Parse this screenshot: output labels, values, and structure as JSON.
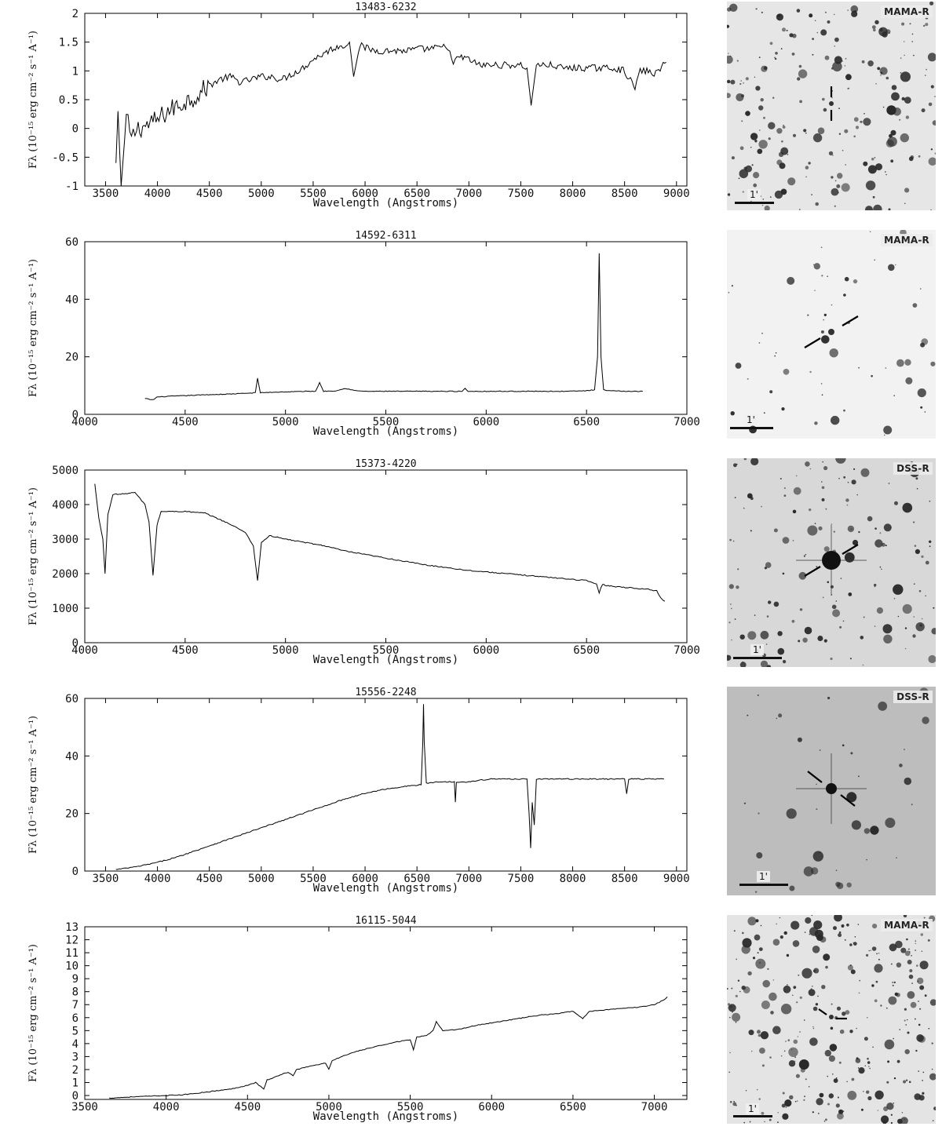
{
  "common": {
    "xlabel": "Wavelength (Angstroms)",
    "ylabel": "F_λ (10^-15 erg cm^-2 s^-1 A^-1)",
    "scale_label": "1'"
  },
  "chart_data": [
    {
      "type": "line",
      "title": "13483-6232",
      "xlabel": "Wavelength (Angstroms)",
      "ylabel": "Fλ (10⁻¹⁵ erg cm⁻² s⁻¹ A⁻¹)",
      "xlim": [
        3300,
        9100
      ],
      "ylim": [
        -1,
        2
      ],
      "xticks": [
        3500,
        4000,
        4500,
        5000,
        5500,
        6000,
        6500,
        7000,
        7500,
        8000,
        8500,
        9000
      ],
      "yticks": [
        -1,
        -0.5,
        0,
        0.5,
        1,
        1.5,
        2
      ],
      "series": [
        {
          "x": [
            3600,
            3620,
            3650,
            3700,
            3750,
            3800,
            3900,
            4000,
            4100,
            4200,
            4300,
            4400,
            4500,
            4600,
            4700,
            4800,
            4900,
            5000,
            5100,
            5200,
            5300,
            5400,
            5500,
            5600,
            5700,
            5800,
            5850,
            5890,
            5950,
            6000,
            6100,
            6200,
            6300,
            6400,
            6500,
            6600,
            6700,
            6800,
            6850,
            6900,
            7000,
            7100,
            7200,
            7300,
            7400,
            7500,
            7560,
            7600,
            7650,
            7700,
            7800,
            7900,
            8000,
            8100,
            8200,
            8300,
            8400,
            8500,
            8600,
            8650,
            8700,
            8800,
            8900
          ],
          "y": [
            -0.6,
            0.3,
            -1.0,
            0.2,
            -0.2,
            0.0,
            0.05,
            0.15,
            0.3,
            0.4,
            0.5,
            0.6,
            0.75,
            0.85,
            0.9,
            0.8,
            0.85,
            0.9,
            0.9,
            0.85,
            0.95,
            1.05,
            1.2,
            1.3,
            1.4,
            1.45,
            1.5,
            0.9,
            1.45,
            1.4,
            1.35,
            1.35,
            1.35,
            1.35,
            1.38,
            1.38,
            1.4,
            1.42,
            1.1,
            1.25,
            1.2,
            1.1,
            1.1,
            1.1,
            1.1,
            1.1,
            1.05,
            0.4,
            1.1,
            1.1,
            1.1,
            1.05,
            1.05,
            1.05,
            1.05,
            1.05,
            1.05,
            1.0,
            0.7,
            1.0,
            1.0,
            0.95,
            1.15
          ]
        }
      ]
    },
    {
      "type": "line",
      "title": "14592-6311",
      "xlabel": "Wavelength (Angstroms)",
      "ylabel": "Fλ (10⁻¹⁵ erg cm⁻² s⁻¹ A⁻¹)",
      "xlim": [
        4000,
        7000
      ],
      "ylim": [
        0,
        60
      ],
      "xticks": [
        4000,
        4500,
        5000,
        5500,
        6000,
        6500,
        7000
      ],
      "yticks": [
        0,
        20,
        40,
        60
      ],
      "series": [
        {
          "x": [
            4300,
            4340,
            4360,
            4400,
            4500,
            4600,
            4700,
            4800,
            4850,
            4861,
            4875,
            4900,
            5000,
            5100,
            5150,
            5170,
            5190,
            5250,
            5300,
            5350,
            5400,
            5500,
            5600,
            5700,
            5800,
            5880,
            5895,
            5910,
            6000,
            6100,
            6200,
            6300,
            6400,
            6500,
            6540,
            6555,
            6563,
            6572,
            6585,
            6600,
            6700,
            6780
          ],
          "y": [
            5.5,
            5.0,
            6.0,
            6.2,
            6.5,
            6.8,
            7.0,
            7.3,
            7.5,
            12.5,
            7.5,
            7.6,
            7.8,
            8.0,
            8.0,
            11.0,
            8.0,
            8.2,
            9.0,
            8.2,
            8.0,
            8.0,
            8.0,
            8.0,
            8.0,
            8.0,
            9.0,
            8.0,
            8.0,
            8.0,
            8.0,
            8.0,
            8.0,
            8.2,
            8.5,
            20.0,
            56.0,
            20.0,
            8.5,
            8.2,
            8.0,
            8.0
          ]
        }
      ]
    },
    {
      "type": "line",
      "title": "15373-4220",
      "xlabel": "Wavelength (Angstroms)",
      "ylabel": "Fλ (10⁻¹⁵ erg cm⁻² s⁻¹ A⁻¹)",
      "xlim": [
        4000,
        7000
      ],
      "ylim": [
        0,
        5000
      ],
      "xticks": [
        4000,
        4500,
        5000,
        5500,
        6000,
        6500,
        7000
      ],
      "yticks": [
        0,
        1000,
        2000,
        3000,
        4000,
        5000
      ],
      "series": [
        {
          "x": [
            4050,
            4070,
            4090,
            4101,
            4115,
            4140,
            4180,
            4250,
            4300,
            4320,
            4340,
            4360,
            4380,
            4400,
            4500,
            4600,
            4700,
            4800,
            4840,
            4861,
            4880,
            4920,
            5000,
            5100,
            5200,
            5300,
            5400,
            5500,
            5600,
            5700,
            5800,
            5900,
            6000,
            6100,
            6200,
            6300,
            6400,
            6500,
            6550,
            6563,
            6580,
            6600,
            6700,
            6800,
            6850,
            6870,
            6890
          ],
          "y": [
            4600,
            3600,
            3000,
            2000,
            3700,
            4300,
            4300,
            4350,
            4000,
            3500,
            1950,
            3400,
            3800,
            3800,
            3800,
            3750,
            3500,
            3200,
            2800,
            1800,
            2900,
            3100,
            3000,
            2900,
            2800,
            2650,
            2550,
            2450,
            2350,
            2250,
            2180,
            2100,
            2050,
            2000,
            1950,
            1900,
            1850,
            1800,
            1700,
            1450,
            1700,
            1650,
            1600,
            1550,
            1500,
            1300,
            1200
          ]
        }
      ]
    },
    {
      "type": "line",
      "title": "15556-2248",
      "xlabel": "Wavelength (Angstroms)",
      "ylabel": "Fλ (10⁻¹⁵ erg cm⁻² s⁻¹ A⁻¹)",
      "xlim": [
        3300,
        9100
      ],
      "ylim": [
        0,
        60
      ],
      "xticks": [
        3500,
        4000,
        4500,
        5000,
        5500,
        6000,
        6500,
        7000,
        7500,
        8000,
        8500,
        9000
      ],
      "yticks": [
        0,
        20,
        40,
        60
      ],
      "series": [
        {
          "x": [
            3600,
            3800,
            4000,
            4200,
            4400,
            4600,
            4800,
            5000,
            5200,
            5400,
            5600,
            5800,
            6000,
            6200,
            6400,
            6540,
            6556,
            6563,
            6570,
            6590,
            6700,
            6860,
            6870,
            6880,
            7000,
            7200,
            7400,
            7560,
            7580,
            7595,
            7610,
            7630,
            7650,
            7700,
            7800,
            8000,
            8200,
            8400,
            8500,
            8520,
            8540,
            8600,
            8700,
            8800,
            8880
          ],
          "y": [
            0.5,
            1.5,
            3.0,
            5.0,
            7.5,
            10.0,
            12.5,
            15.0,
            17.5,
            20.0,
            22.5,
            25.0,
            27.0,
            28.5,
            29.5,
            30.0,
            45.0,
            58.0,
            45.0,
            30.5,
            31.0,
            31.0,
            24.0,
            31.0,
            31.0,
            32.0,
            32.0,
            32.0,
            20.0,
            8.0,
            24.0,
            16.0,
            32.0,
            32.0,
            32.0,
            32.0,
            32.0,
            32.0,
            32.0,
            27.0,
            32.0,
            32.0,
            32.0,
            32.0,
            32.0
          ]
        }
      ]
    },
    {
      "type": "line",
      "title": "16115-5044",
      "xlabel": "Wavelength (Angstroms)",
      "ylabel": "Fλ (10⁻¹⁵ erg cm⁻² s⁻¹ A⁻¹)",
      "xlim": [
        3500,
        7200
      ],
      "ylim": [
        -0.3,
        13
      ],
      "xticks": [
        3500,
        4000,
        4500,
        5000,
        5500,
        6000,
        6500,
        7000
      ],
      "yticks": [
        0,
        1,
        2,
        3,
        4,
        5,
        6,
        7,
        8,
        9,
        10,
        11,
        12,
        13
      ],
      "series": [
        {
          "x": [
            3650,
            3800,
            4000,
            4100,
            4200,
            4300,
            4400,
            4500,
            4550,
            4600,
            4620,
            4650,
            4700,
            4750,
            4780,
            4800,
            4900,
            4980,
            5000,
            5020,
            5100,
            5200,
            5300,
            5400,
            5500,
            5520,
            5540,
            5600,
            5640,
            5660,
            5700,
            5800,
            5900,
            6000,
            6100,
            6200,
            6300,
            6400,
            6500,
            6560,
            6600,
            6700,
            6800,
            6900,
            7000,
            7050,
            7080
          ],
          "y": [
            -0.2,
            -0.1,
            0.0,
            0.05,
            0.2,
            0.35,
            0.5,
            0.8,
            1.0,
            0.5,
            1.2,
            1.3,
            1.6,
            1.8,
            1.5,
            2.0,
            2.3,
            2.5,
            2.0,
            2.7,
            3.1,
            3.5,
            3.8,
            4.1,
            4.3,
            3.5,
            4.5,
            4.6,
            5.0,
            5.7,
            5.0,
            5.1,
            5.4,
            5.6,
            5.8,
            6.0,
            6.2,
            6.3,
            6.5,
            5.9,
            6.5,
            6.6,
            6.7,
            6.8,
            7.0,
            7.3,
            7.6
          ]
        }
      ]
    }
  ],
  "images": [
    {
      "label": "MAMA-R",
      "scale_label": "1'",
      "bg": "#e6e6e6",
      "marker": "vertical"
    },
    {
      "label": "MAMA-R",
      "scale_label": "1'",
      "bg": "#f2f2f2",
      "marker": "diagonal"
    },
    {
      "label": "DSS-R",
      "scale_label": "1'",
      "bg": "#d8d8d8",
      "marker": "diagonal"
    },
    {
      "label": "DSS-R",
      "scale_label": "1'",
      "bg": "#bdbdbd",
      "marker": "antidiagonal"
    },
    {
      "label": "MAMA-R",
      "scale_label": "1'",
      "bg": "#e4e4e4",
      "marker": "diagonal-small"
    }
  ]
}
